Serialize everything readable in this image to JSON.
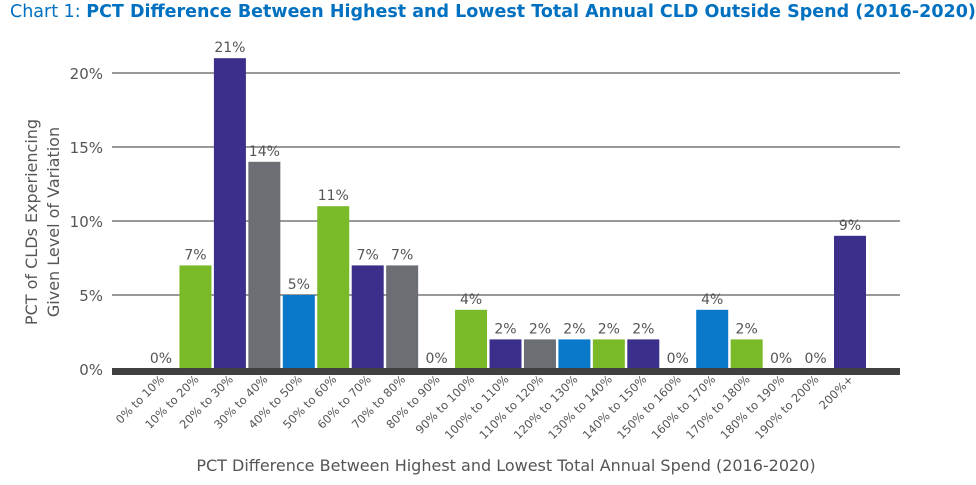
{
  "chart_data": {
    "type": "bar",
    "title_prefix": "Chart 1:",
    "title": "PCT Difference Between Highest and Lowest Total Annual CLD Outside Spend (2016-2020)",
    "xlabel": "PCT Difference Between Highest and Lowest Total Annual Spend (2016-2020)",
    "ylabel_lines": [
      "PCT of CLDs Experiencing",
      "Given Level of Variation"
    ],
    "ylim": [
      0,
      20
    ],
    "yticks": [
      0,
      5,
      10,
      15,
      20
    ],
    "ytick_labels": [
      "0%",
      "5%",
      "10%",
      "15%",
      "20%"
    ],
    "grid": true,
    "categories": [
      "0% to 10%",
      "10% to 20%",
      "20% to 30%",
      "30% to 40%",
      "40% to 50%",
      "50% to 60%",
      "60% to 70%",
      "70% to 80%",
      "80% to 90%",
      "90% to 100%",
      "100% to 110%",
      "110% to 120%",
      "120% to 130%",
      "130% to 140%",
      "140% to 150%",
      "150% to 160%",
      "160% to 170%",
      "170% to 180%",
      "180% to 190%",
      "190% to 200%",
      "200%+"
    ],
    "values": [
      0,
      7,
      21,
      14,
      5,
      11,
      7,
      7,
      0,
      4,
      2,
      2,
      2,
      2,
      2,
      0,
      4,
      2,
      0,
      0,
      9
    ],
    "value_labels": [
      "0%",
      "7%",
      "21%",
      "14%",
      "5%",
      "11%",
      "7%",
      "7%",
      "0%",
      "4%",
      "2%",
      "2%",
      "2%",
      "2%",
      "2%",
      "0%",
      "4%",
      "2%",
      "0%",
      "0%",
      "9%"
    ],
    "bar_colors": [
      "#7aba28",
      "#7aba28",
      "#3a2f8a",
      "#6b6e73",
      "#0a79c9",
      "#7aba28",
      "#3a2f8a",
      "#6b6e73",
      "#7aba28",
      "#7aba28",
      "#3a2f8a",
      "#6b6e73",
      "#0a79c9",
      "#7aba28",
      "#3a2f8a",
      "#6b6e73",
      "#0a79c9",
      "#7aba28",
      "#3a2f8a",
      "#6b6e73",
      "#3a2f8a"
    ]
  },
  "colors": {
    "title": "#0070c0",
    "axis_text": "#555555",
    "gridline": "#333333",
    "baseline": "#404040"
  }
}
